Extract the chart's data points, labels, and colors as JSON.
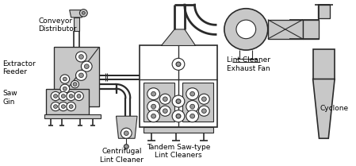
{
  "bg_color": "#ffffff",
  "line_color": "#2a2a2a",
  "fill_light": "#c8c8c8",
  "fill_mid": "#999999",
  "fill_white": "#ffffff",
  "labels": {
    "conveyor": "Conveyor\nDistributor",
    "extractor": "Extractor\nFeeder",
    "saw_gin": "Saw\nGin",
    "centrifugal": "Centrifugal\nLint Cleaner",
    "tandem": "Tandem Saw-type\nLint Cleaners",
    "lint_fan": "Lint Cleaner\nExhaust Fan",
    "cyclone": "Cyclone"
  },
  "lw": 0.8
}
